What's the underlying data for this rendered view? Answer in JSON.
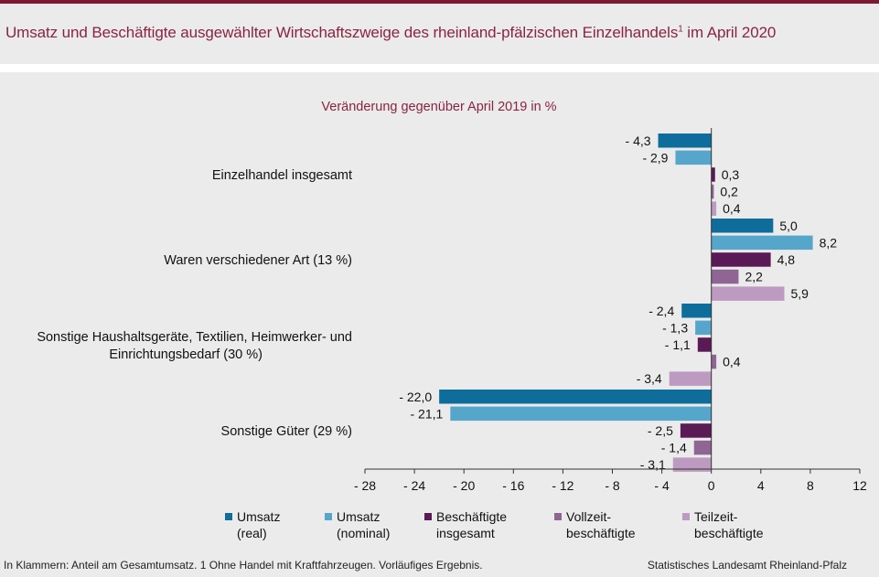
{
  "title": {
    "main": "Umsatz und Beschäftigte ausgewählter Wirtschaftszweige des rheinland-pfälzischen Einzelhandels",
    "superscript": "1",
    "suffix": " im April 2020"
  },
  "footnote": "In Klammern: Anteil am Gesamtumsatz. 1 Ohne Handel mit Kraftfahrzeugen. Vorläufiges Ergebnis.",
  "source": "Statistisches Landesamt Rheinland-Pfalz",
  "chart_data": {
    "type": "bar",
    "orientation": "horizontal",
    "subtitle": "Veränderung gegenüber April 2019 in %",
    "categories": [
      "Einzelhandel insgesamt",
      "Waren verschiedener Art (13 %)",
      "Sonstige Haushaltsgeräte, Textilien, Heimwerker- und Einrichtungsbedarf (30 %)",
      "Sonstige Güter (29 %)"
    ],
    "series": [
      {
        "name": "Umsatz (real)",
        "color": "#0e6d9a",
        "values": [
          -4.3,
          5.0,
          -2.4,
          -22.0
        ],
        "labels": [
          "- 4,3",
          "5,0",
          "- 2,4",
          "- 22,0"
        ]
      },
      {
        "name": "Umsatz (nominal)",
        "color": "#56a6cc",
        "values": [
          -2.9,
          8.2,
          -1.3,
          -21.1
        ],
        "labels": [
          "- 2,9",
          "8,2",
          "- 1,3",
          "- 21,1"
        ]
      },
      {
        "name": "Beschäftigte insgesamt",
        "color": "#5a1a55",
        "values": [
          0.3,
          4.8,
          -1.1,
          -2.5
        ],
        "labels": [
          "0,3",
          "4,8",
          "- 1,1",
          "- 2,5"
        ]
      },
      {
        "name": "Vollzeit-beschäftigte",
        "color": "#8f6593",
        "values": [
          0.2,
          2.2,
          0.4,
          -1.4
        ],
        "labels": [
          "0,2",
          "2,2",
          "0,4",
          "- 1,4"
        ]
      },
      {
        "name": "Teilzeit-beschäftigte",
        "color": "#bd9ac0",
        "values": [
          0.4,
          5.9,
          -3.4,
          -3.1
        ],
        "labels": [
          "0,4",
          "5,9",
          "- 3,4",
          "- 3,1"
        ]
      }
    ],
    "category_labels": [
      [
        "Einzelhandel insgesamt"
      ],
      [
        "Waren verschiedener Art (13 %)"
      ],
      [
        "Sonstige Haushaltsgeräte, Textilien, Heimwerker- und",
        "Einrichtungsbedarf (30 %)"
      ],
      [
        "Sonstige Güter (29 %)"
      ]
    ],
    "legend": [
      {
        "line1": "Umsatz",
        "line2": "(real)",
        "color": "#0e6d9a"
      },
      {
        "line1": "Umsatz",
        "line2": "(nominal)",
        "color": "#56a6cc"
      },
      {
        "line1": "Beschäftigte",
        "line2": "insgesamt",
        "color": "#5a1a55"
      },
      {
        "line1": "Vollzeit-",
        "line2": "beschäftigte",
        "color": "#8f6593"
      },
      {
        "line1": "Teilzeit-",
        "line2": "beschäftigte",
        "color": "#bd9ac0"
      }
    ],
    "xlim": [
      -28,
      12
    ],
    "xticks": [
      -28,
      -24,
      -20,
      -16,
      -12,
      -8,
      -4,
      0,
      4,
      8,
      12
    ],
    "xtick_labels": [
      "- 28",
      "- 24",
      "- 20",
      "- 16",
      "- 12",
      "- 8",
      "- 4",
      "0",
      "4",
      "8",
      "12"
    ],
    "grid": false,
    "legend_position": "bottom"
  }
}
